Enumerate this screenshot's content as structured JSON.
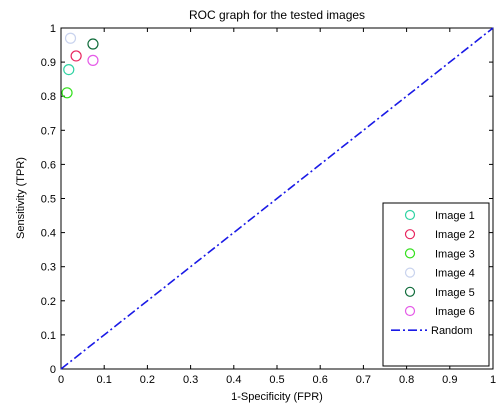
{
  "chart_data": {
    "type": "scatter",
    "title": "ROC graph for the tested images",
    "xlabel": "1-Specificity (FPR)",
    "ylabel": "Sensitivity (TPR)",
    "xlim": [
      0,
      1
    ],
    "ylim": [
      0,
      1
    ],
    "grid": false,
    "legend_position": "bottom-right",
    "x_ticks": [
      "0",
      "0.1",
      "0.2",
      "0.3",
      "0.4",
      "0.5",
      "0.6",
      "0.7",
      "0.8",
      "0.9",
      "1"
    ],
    "y_ticks": [
      "0",
      "0.1",
      "0.2",
      "0.3",
      "0.4",
      "0.5",
      "0.6",
      "0.7",
      "0.8",
      "0.9",
      "1"
    ],
    "series": [
      {
        "name": "Image 1",
        "color": "#2fd3a3",
        "marker": "circle",
        "x": [
          0.018
        ],
        "y": [
          0.878
        ]
      },
      {
        "name": "Image 2",
        "color": "#e8265f",
        "marker": "circle",
        "x": [
          0.035
        ],
        "y": [
          0.918
        ]
      },
      {
        "name": "Image 3",
        "color": "#33e01c",
        "marker": "circle",
        "x": [
          0.014
        ],
        "y": [
          0.81
        ]
      },
      {
        "name": "Image 4",
        "color": "#c9d3ee",
        "marker": "circle",
        "x": [
          0.022
        ],
        "y": [
          0.97
        ]
      },
      {
        "name": "Image 5",
        "color": "#0f6b3a",
        "marker": "circle",
        "x": [
          0.074
        ],
        "y": [
          0.953
        ]
      },
      {
        "name": "Image 6",
        "color": "#e55be8",
        "marker": "circle",
        "x": [
          0.074
        ],
        "y": [
          0.905
        ]
      },
      {
        "name": "Random",
        "color": "#1a1ae6",
        "marker": "dash-dot-line",
        "x": [
          0,
          1
        ],
        "y": [
          0,
          1
        ]
      }
    ]
  }
}
